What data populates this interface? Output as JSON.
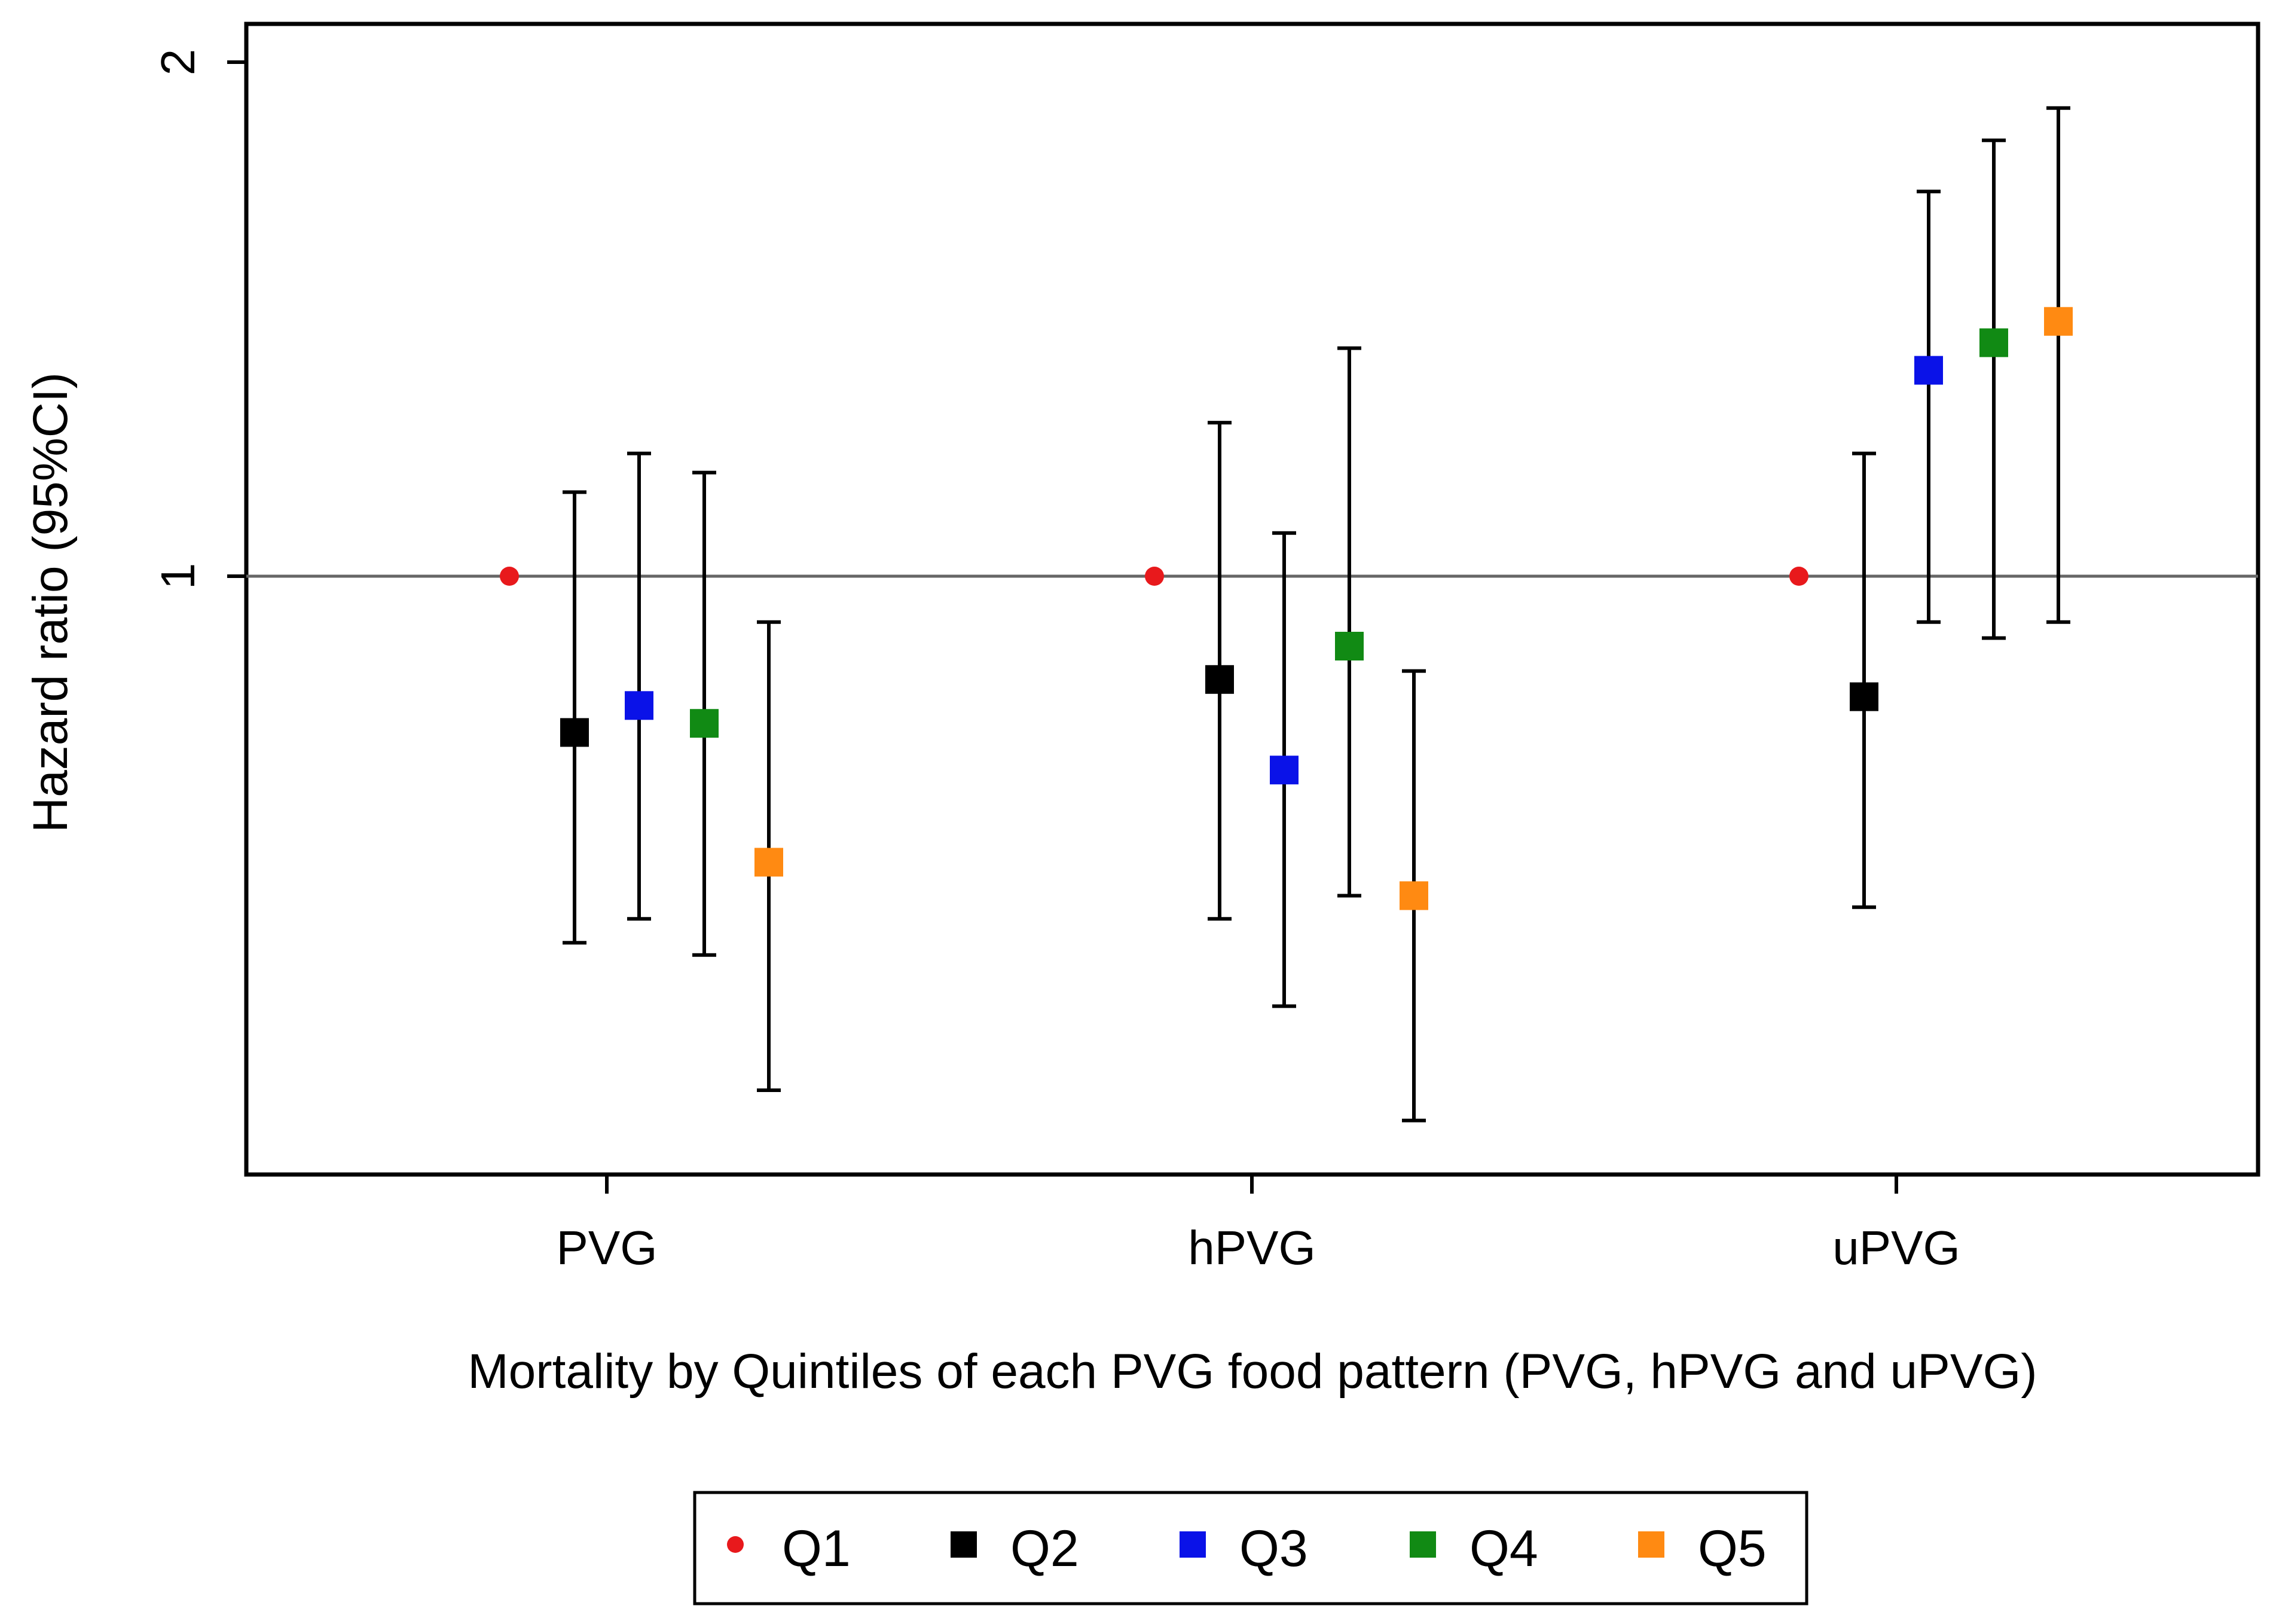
{
  "chart_data": {
    "type": "scatter",
    "subtype": "forest-plot",
    "title": "",
    "xlabel": "Mortality by Quintiles of each PVG food pattern (PVG, hPVG and uPVG)",
    "ylabel": "Hazard ratio (95%CI)",
    "y_scale": "log",
    "ylim": [
      0.45,
      2.15
    ],
    "yticks": [
      {
        "value": 1,
        "label": "1"
      },
      {
        "value": 2,
        "label": "2"
      }
    ],
    "reference_line": 1,
    "categories": [
      "PVG",
      "hPVG",
      "uPVG"
    ],
    "series": [
      {
        "name": "Q1",
        "color": "#e8191c",
        "marker": "circle",
        "values": [
          1.0,
          1.0,
          1.0
        ],
        "ci_low": [
          null,
          null,
          null
        ],
        "ci_high": [
          null,
          null,
          null
        ]
      },
      {
        "name": "Q2",
        "color": "#000000",
        "marker": "square",
        "values": [
          0.81,
          0.87,
          0.85
        ],
        "ci_low": [
          0.61,
          0.63,
          0.64
        ],
        "ci_high": [
          1.12,
          1.23,
          1.18
        ]
      },
      {
        "name": "Q3",
        "color": "#0a12e8",
        "marker": "square",
        "values": [
          0.84,
          0.77,
          1.32
        ],
        "ci_low": [
          0.63,
          0.56,
          0.94
        ],
        "ci_high": [
          1.18,
          1.06,
          1.68
        ]
      },
      {
        "name": "Q4",
        "color": "#118a14",
        "marker": "square",
        "values": [
          0.82,
          0.91,
          1.37
        ],
        "ci_low": [
          0.6,
          0.65,
          0.92
        ],
        "ci_high": [
          1.15,
          1.36,
          1.8
        ]
      },
      {
        "name": "Q5",
        "color": "#ff8a12",
        "marker": "square",
        "values": [
          0.68,
          0.65,
          1.41
        ],
        "ci_low": [
          0.5,
          0.48,
          0.94
        ],
        "ci_high": [
          0.94,
          0.88,
          1.88
        ]
      }
    ],
    "legend": {
      "position": "bottom",
      "entries": [
        "Q1",
        "Q2",
        "Q3",
        "Q4",
        "Q5"
      ]
    }
  }
}
